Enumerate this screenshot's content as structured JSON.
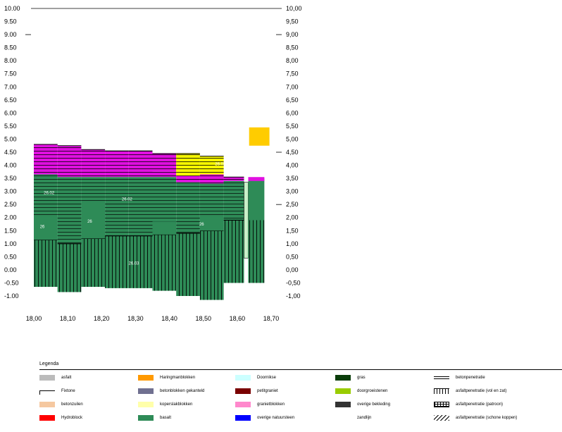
{
  "chart_data": {
    "type": "area",
    "xlim": [
      18.0,
      18.7
    ],
    "ylim": [
      -1.0,
      10.0
    ],
    "x_ticks": [
      "18,00",
      "18,10",
      "18,20",
      "18,30",
      "18,40",
      "18,50",
      "18,60",
      "18,70"
    ],
    "y_ticks_left": [
      "10.00",
      "9.50",
      "9.00",
      "8.50",
      "8.00",
      "7.50",
      "7.00",
      "6.50",
      "6.00",
      "5.50",
      "5.00",
      "4.50",
      "4.00",
      "3.50",
      "3.00",
      "2.50",
      "2.00",
      "1.50",
      "1.00",
      "0.50",
      "0.00",
      "-0.50",
      "-1.00"
    ],
    "y_ticks_right": [
      "10,00",
      "9,50",
      "9,00",
      "8,50",
      "8,00",
      "7,50",
      "7,00",
      "6,50",
      "6,00",
      "5,50",
      "5,00",
      "4,50",
      "4,00",
      "3,50",
      "3,00",
      "2,50",
      "2,00",
      "1,50",
      "1,00",
      "0,50",
      "0,00",
      "-0,50",
      "-1,00"
    ],
    "colors": {
      "basalt": "#2e8b57",
      "green_pale": "#c8f0c8",
      "magenta": "#e010e0",
      "yellow": "#f5f500",
      "orange": "#ffcc00",
      "line": "#000000"
    },
    "columns": [
      {
        "x0": 18.0,
        "x1": 18.07,
        "top_layer": 4.8,
        "mid_layer": 3.65,
        "basalt_top": 3.65,
        "hatch_top": 1.15,
        "bottom": -0.65
      },
      {
        "x0": 18.07,
        "x1": 18.14,
        "top_layer": 4.75,
        "mid_layer": 3.55,
        "basalt_top": 3.55,
        "hatch_top": 1.0,
        "bottom": -0.85
      },
      {
        "x0": 18.14,
        "x1": 18.21,
        "top_layer": 4.6,
        "mid_layer": 3.55,
        "basalt_top": 3.55,
        "hatch_top": 1.2,
        "bottom": -0.65
      },
      {
        "x0": 18.21,
        "x1": 18.28,
        "top_layer": 4.55,
        "mid_layer": 3.55,
        "basalt_top": 3.55,
        "hatch_top": 1.3,
        "bottom": -0.7
      },
      {
        "x0": 18.28,
        "x1": 18.35,
        "top_layer": 4.55,
        "mid_layer": 3.55,
        "basalt_top": 3.55,
        "hatch_top": 1.3,
        "bottom": -0.7
      },
      {
        "x0": 18.35,
        "x1": 18.42,
        "top_layer": 4.45,
        "mid_layer": 3.75,
        "basalt_top": 3.55,
        "hatch_top": 1.35,
        "bottom": -0.8
      },
      {
        "x0": 18.42,
        "x1": 18.49,
        "top_layer": 4.45,
        "mid_layer": 3.6,
        "basalt_top": 3.35,
        "hatch_top": 1.4,
        "bottom": -1.0
      },
      {
        "x0": 18.49,
        "x1": 18.56,
        "top_layer": 4.35,
        "mid_layer": 3.65,
        "basalt_top": 3.3,
        "hatch_top": 1.5,
        "bottom": -1.15
      },
      {
        "x0": 18.56,
        "x1": 18.62,
        "top_layer": 3.55,
        "mid_layer": 3.55,
        "basalt_top": 3.4,
        "hatch_top": 1.9,
        "bottom": -0.5
      }
    ],
    "annotations": [
      "26.02",
      "26.02",
      "26.02",
      "26",
      "26",
      "26",
      "26.03"
    ],
    "legend_title": "Legenda",
    "legend": [
      {
        "label": "asfalt",
        "color": "#bbbbbb",
        "style": "fill"
      },
      {
        "label": "Fixtone",
        "color": "#000000",
        "style": "line"
      },
      {
        "label": "betonzuilen",
        "color": "#f5c8a0",
        "style": "fill"
      },
      {
        "label": "Hydroblock",
        "color": "#ff0000",
        "style": "fill"
      },
      {
        "label": "Haringmanblokken",
        "color": "#ff9900",
        "style": "fill"
      },
      {
        "label": "betonblokken gekanteld",
        "color": "#707090",
        "style": "fill"
      },
      {
        "label": "koperslakblokken",
        "color": "#ffffaa",
        "style": "fill"
      },
      {
        "label": "basalt",
        "color": "#2e8b57",
        "style": "fill"
      },
      {
        "label": "Doornikse",
        "color": "#ccffff",
        "style": "fill"
      },
      {
        "label": "petitgraniet",
        "color": "#7a0000",
        "style": "fill"
      },
      {
        "label": "granietblokken",
        "color": "#ff88cc",
        "style": "fill"
      },
      {
        "label": "overige natuursteen",
        "color": "#0000ff",
        "style": "fill"
      },
      {
        "label": "gras",
        "color": "#0a3d0a",
        "style": "fill"
      },
      {
        "label": "doorgroeistenen",
        "color": "#99cc00",
        "style": "fill"
      },
      {
        "label": "overige bekleding",
        "color": "#333333",
        "style": "fill"
      },
      {
        "label": "zandlijn",
        "color": "#ffffff",
        "style": "none"
      },
      {
        "label": "betonpenetratie",
        "color": "#000000",
        "style": "double"
      },
      {
        "label": "asfaltpenetratie (vol en zat)",
        "color": "#000000",
        "style": "vlines"
      },
      {
        "label": "asfaltpenetratie (patroon)",
        "color": "#000000",
        "style": "grid"
      },
      {
        "label": "asfaltpenetratie (schone koppen)",
        "color": "#000000",
        "style": "diag"
      }
    ]
  }
}
